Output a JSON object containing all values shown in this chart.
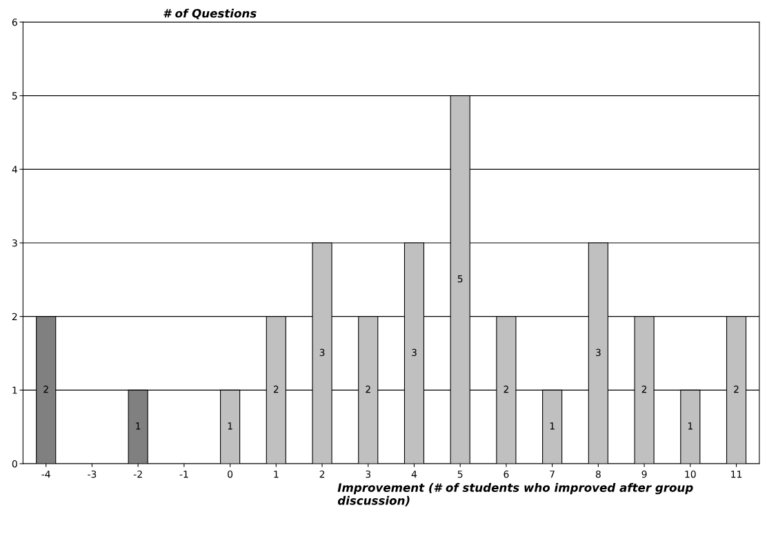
{
  "chart_data": {
    "type": "bar",
    "ylabel": "# of Questions",
    "xlabel": "Improvement (# of students who improved after group discussion)",
    "categories": [
      "-4",
      "-3",
      "-2",
      "-1",
      "0",
      "1",
      "2",
      "3",
      "4",
      "5",
      "6",
      "7",
      "8",
      "9",
      "10",
      "11"
    ],
    "values": [
      2,
      null,
      1,
      null,
      1,
      2,
      3,
      2,
      3,
      5,
      2,
      1,
      3,
      2,
      1,
      2
    ],
    "colors": [
      "#808080",
      null,
      "#808080",
      null,
      "#c0c0c0",
      "#c0c0c0",
      "#c0c0c0",
      "#c0c0c0",
      "#c0c0c0",
      "#c0c0c0",
      "#c0c0c0",
      "#c0c0c0",
      "#c0c0c0",
      "#c0c0c0",
      "#c0c0c0",
      "#c0c0c0"
    ],
    "value_labels": [
      "2",
      null,
      "1",
      null,
      "1",
      "2",
      "3",
      "2",
      "3",
      "5",
      "2",
      "1",
      "3",
      "2",
      "1",
      "2"
    ],
    "ylim": [
      0,
      6
    ],
    "yticks": [
      0,
      1,
      2,
      3,
      4,
      5,
      6
    ],
    "grid": "y"
  }
}
